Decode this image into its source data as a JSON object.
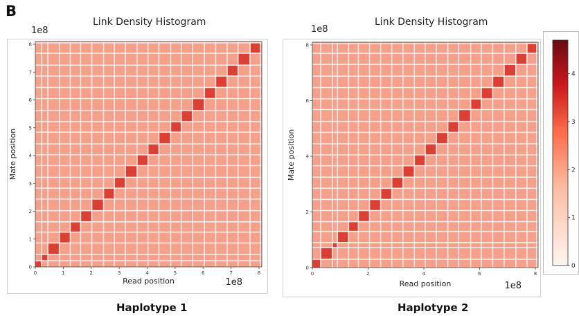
{
  "panel_label": "B",
  "colors": {
    "background_cell": "#f4a08a",
    "grid_line": "#f3ece9",
    "diagonal": "#d9352a",
    "colorbar_top": "#6b0b12",
    "colorbar_bottom": "#fff5f0"
  },
  "captions": [
    "Haplotype 1",
    "Haplotype 2"
  ],
  "chart_data": [
    {
      "type": "heatmap",
      "title": "Link Density Histogram",
      "xlabel": "Read position",
      "ylabel": "Mate position",
      "x_multiplier": "1e8",
      "y_multiplier": "1e8",
      "xlim": [
        0,
        8.1
      ],
      "ylim": [
        0,
        8.1
      ],
      "x_ticks": [
        "0",
        "1",
        "2",
        "3",
        "4",
        "5",
        "6",
        "7",
        "8"
      ],
      "y_ticks": [
        "0",
        "1",
        "2",
        "3",
        "4",
        "5",
        "6",
        "7",
        "8"
      ],
      "grid_boundaries": [
        0.22,
        0.45,
        0.86,
        1.25,
        1.62,
        2.02,
        2.44,
        2.83,
        3.22,
        3.64,
        4.03,
        4.42,
        4.84,
        5.22,
        5.62,
        6.05,
        6.45,
        6.86,
        7.25,
        7.68,
        8.05
      ]
    },
    {
      "type": "heatmap",
      "title": "Link Density Histogram",
      "xlabel": "Read position",
      "ylabel": "Mate position",
      "x_multiplier": "1e8",
      "y_multiplier": "1e8",
      "xlim": [
        0,
        8.1
      ],
      "ylim": [
        0,
        8.1
      ],
      "x_ticks": [
        "0",
        "2",
        "4",
        "6",
        "8"
      ],
      "y_ticks": [
        "0",
        "2",
        "4",
        "6",
        "8"
      ],
      "grid_boundaries": [
        0.3,
        0.72,
        0.9,
        1.3,
        1.65,
        2.05,
        2.45,
        2.85,
        3.25,
        3.66,
        4.05,
        4.45,
        4.86,
        5.25,
        5.68,
        6.06,
        6.47,
        6.88,
        7.3,
        7.7,
        8.05
      ]
    }
  ],
  "colorbar": {
    "ticks": [
      "0",
      "1",
      "2",
      "3",
      "4"
    ],
    "range": [
      0,
      4.7
    ]
  }
}
